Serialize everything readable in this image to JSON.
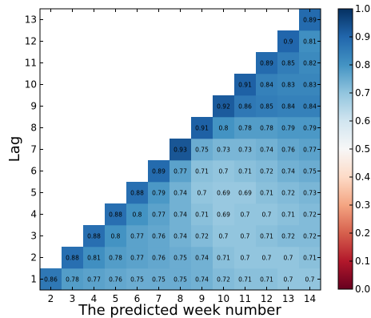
{
  "chart_data": {
    "type": "heatmap",
    "title": "",
    "xlabel": "The predicted week number",
    "ylabel": "Lag",
    "x_categories": [
      2,
      3,
      4,
      5,
      6,
      7,
      8,
      9,
      10,
      11,
      12,
      13,
      14
    ],
    "y_categories": [
      1,
      2,
      3,
      4,
      5,
      6,
      7,
      8,
      9,
      10,
      11,
      12,
      13
    ],
    "colormap": "RdBu",
    "vmin": 0.0,
    "vmax": 1.0,
    "colorbar_ticks": [
      "0.0",
      "0.1",
      "0.2",
      "0.3",
      "0.4",
      "0.5",
      "0.6",
      "0.7",
      "0.8",
      "0.9",
      "1.0"
    ],
    "grid": false,
    "values_by_lag": {
      "1": [
        0.86,
        0.78,
        0.77,
        0.76,
        0.75,
        0.75,
        0.75,
        0.74,
        0.72,
        0.71,
        0.71,
        0.7,
        0.7
      ],
      "2": [
        null,
        0.88,
        0.81,
        0.78,
        0.77,
        0.76,
        0.75,
        0.74,
        0.71,
        0.7,
        0.7,
        0.7,
        0.71
      ],
      "3": [
        null,
        null,
        0.88,
        0.8,
        0.77,
        0.76,
        0.74,
        0.72,
        0.7,
        0.7,
        0.71,
        0.72,
        0.72
      ],
      "4": [
        null,
        null,
        null,
        0.88,
        0.8,
        0.77,
        0.74,
        0.71,
        0.69,
        0.7,
        0.7,
        0.71,
        0.72
      ],
      "5": [
        null,
        null,
        null,
        null,
        0.88,
        0.79,
        0.74,
        0.7,
        0.69,
        0.69,
        0.71,
        0.72,
        0.73
      ],
      "6": [
        null,
        null,
        null,
        null,
        null,
        0.89,
        0.77,
        0.71,
        0.7,
        0.71,
        0.72,
        0.74,
        0.75
      ],
      "7": [
        null,
        null,
        null,
        null,
        null,
        null,
        0.93,
        0.75,
        0.73,
        0.73,
        0.74,
        0.76,
        0.77
      ],
      "8": [
        null,
        null,
        null,
        null,
        null,
        null,
        null,
        0.91,
        0.8,
        0.78,
        0.78,
        0.79,
        0.79
      ],
      "9": [
        null,
        null,
        null,
        null,
        null,
        null,
        null,
        null,
        0.92,
        0.86,
        0.85,
        0.84,
        0.84
      ],
      "10": [
        null,
        null,
        null,
        null,
        null,
        null,
        null,
        null,
        null,
        0.91,
        0.84,
        0.83,
        0.83
      ],
      "11": [
        null,
        null,
        null,
        null,
        null,
        null,
        null,
        null,
        null,
        null,
        0.89,
        0.85,
        0.82
      ],
      "12": [
        null,
        null,
        null,
        null,
        null,
        null,
        null,
        null,
        null,
        null,
        null,
        0.9,
        0.81
      ],
      "13": [
        null,
        null,
        null,
        null,
        null,
        null,
        null,
        null,
        null,
        null,
        null,
        null,
        0.89
      ]
    }
  }
}
